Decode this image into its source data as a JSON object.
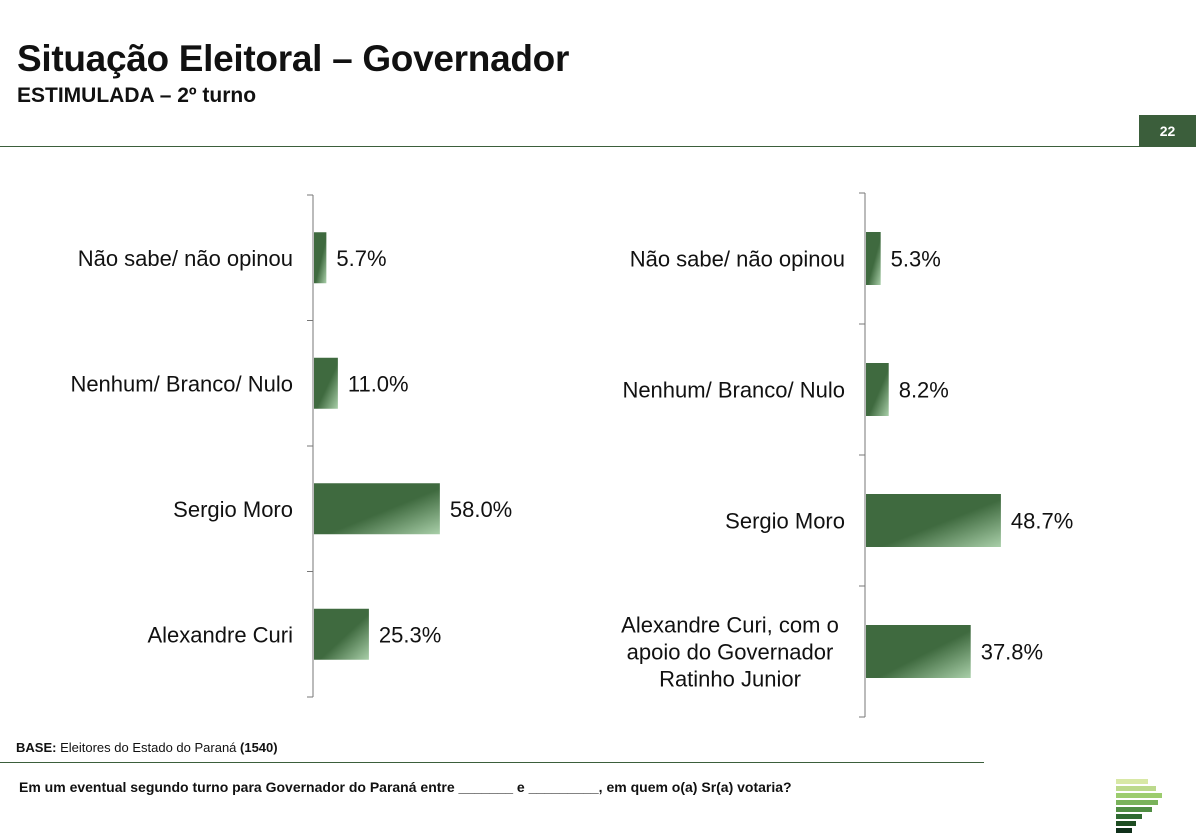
{
  "header": {
    "title": "Situação Eleitoral – Governador",
    "subtitle": "ESTIMULADA – 2º turno",
    "page_number": "22"
  },
  "colors": {
    "accent": "#3b5e3b",
    "bar_dark": "#3f6a3f",
    "bar_light": "#a9cfa9"
  },
  "chart_data": [
    {
      "type": "bar",
      "orientation": "horizontal",
      "categories": [
        "Não sabe/ não opinou",
        "Nenhum/ Branco/ Nulo",
        "Sergio Moro",
        "Alexandre Curi"
      ],
      "values": [
        5.7,
        11.0,
        58.0,
        25.3
      ],
      "value_labels": [
        "5.7%",
        "11.0%",
        "58.0%",
        "25.3%"
      ],
      "unit": "%"
    },
    {
      "type": "bar",
      "orientation": "horizontal",
      "categories": [
        "Não sabe/ não opinou",
        "Nenhum/ Branco/ Nulo",
        "Sergio Moro",
        "Alexandre Curi, com o apoio do Governador Ratinho Junior"
      ],
      "category_lines": [
        [
          "Não sabe/ não opinou"
        ],
        [
          "Nenhum/ Branco/ Nulo"
        ],
        [
          "Sergio Moro"
        ],
        [
          "Alexandre Curi, com o",
          "apoio do Governador",
          "Ratinho Junior"
        ]
      ],
      "values": [
        5.3,
        8.2,
        48.7,
        37.8
      ],
      "value_labels": [
        "5.3%",
        "8.2%",
        "48.7%",
        "37.8%"
      ],
      "unit": "%"
    }
  ],
  "footer": {
    "base_label": "BASE:",
    "base_text": " Eleitores do Estado do Paraná ",
    "base_count": "(1540)",
    "question": "Em um eventual segundo turno para Governador do Paraná entre _______ e _________, em quem o(a) Sr(a) votaria?"
  }
}
